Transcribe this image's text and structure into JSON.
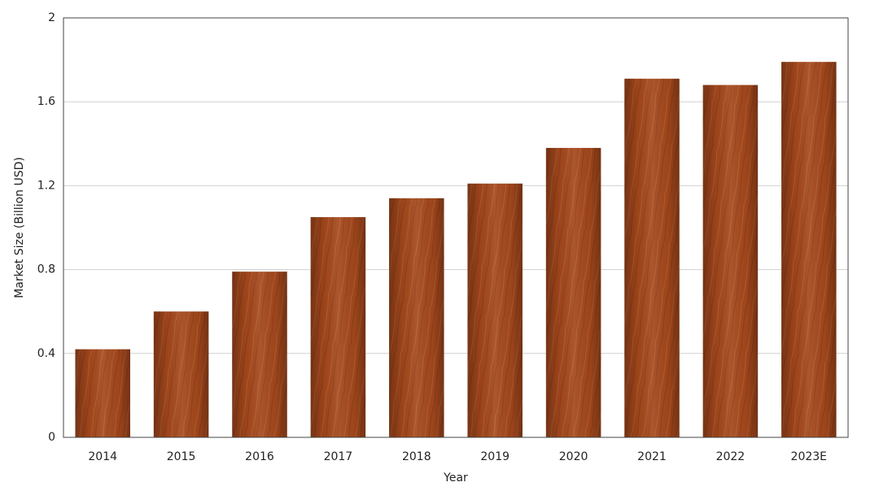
{
  "chart_data": {
    "type": "bar",
    "x_label": "Year",
    "y_label": "Market Size (Billion USD)",
    "categories": [
      "2014",
      "2015",
      "2016",
      "2017",
      "2018",
      "2019",
      "2020",
      "2021",
      "2022",
      "2023E"
    ],
    "values": [
      0.42,
      0.6,
      0.79,
      1.05,
      1.14,
      1.21,
      1.38,
      1.71,
      1.68,
      1.79
    ],
    "color": "#a5481c",
    "ylim": [
      0,
      2
    ],
    "yticks": [
      0,
      0.4,
      0.8,
      1.2,
      1.6,
      2
    ],
    "grid": true
  }
}
